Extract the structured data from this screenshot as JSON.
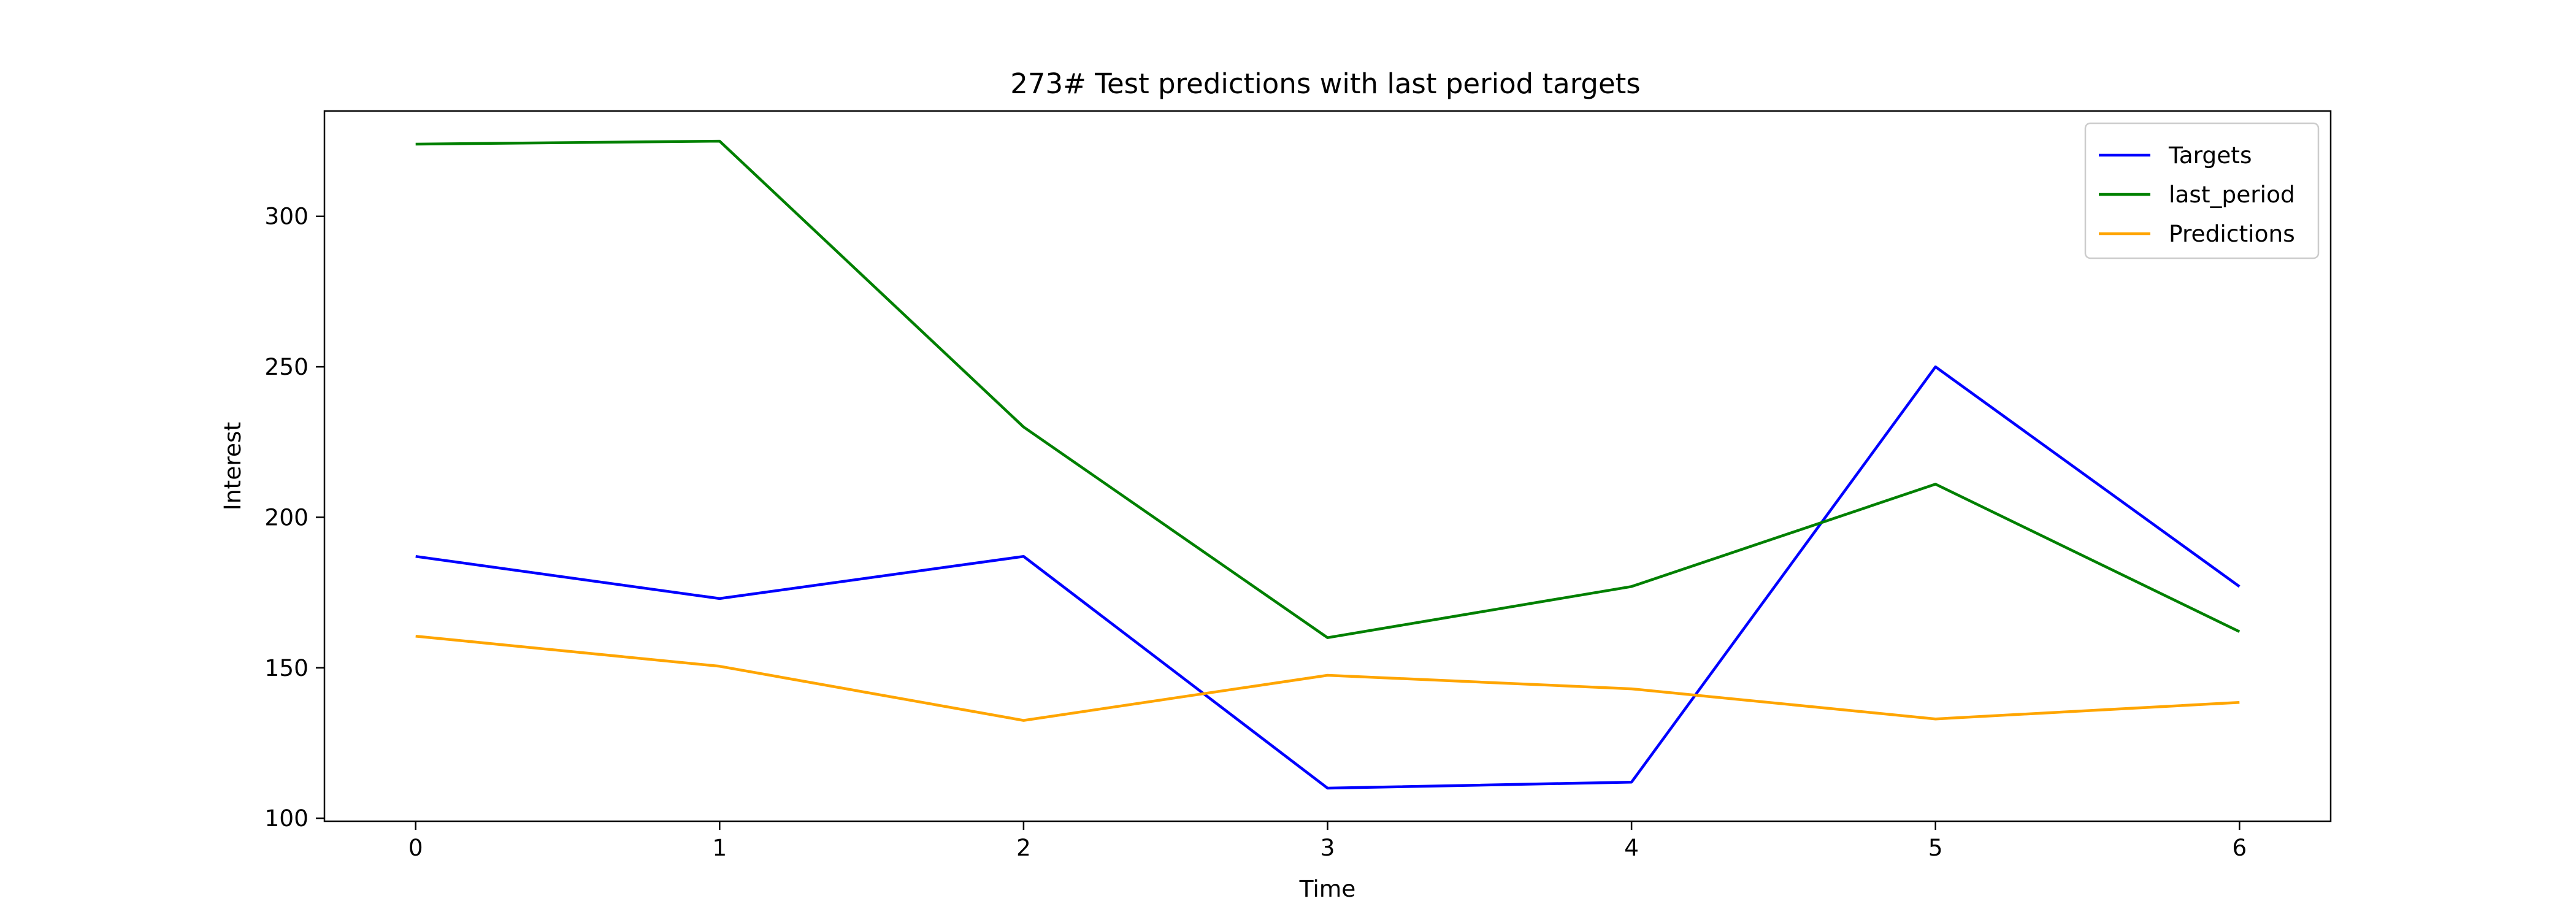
{
  "chart_data": {
    "type": "line",
    "title": "273# Test predictions with last period targets",
    "xlabel": "Time",
    "ylabel": "Interest",
    "x": [
      0,
      1,
      2,
      3,
      4,
      5,
      6
    ],
    "xlim": [
      -0.3,
      6.3
    ],
    "ylim": [
      99,
      335
    ],
    "xticks": [
      0,
      1,
      2,
      3,
      4,
      5,
      6
    ],
    "yticks": [
      100,
      150,
      200,
      250,
      300
    ],
    "grid": false,
    "legend_position": "top-right",
    "series": [
      {
        "name": "Targets",
        "color": "#0000ff",
        "values": [
          187,
          173,
          187,
          110,
          112,
          250,
          177
        ]
      },
      {
        "name": "last_period",
        "color": "#008000",
        "values": [
          324,
          325,
          230,
          160,
          177,
          211,
          162
        ]
      },
      {
        "name": "Predictions",
        "color": "#ffa500",
        "values": [
          160.5,
          150.5,
          132.5,
          147.5,
          143,
          133,
          138.5
        ]
      }
    ]
  }
}
